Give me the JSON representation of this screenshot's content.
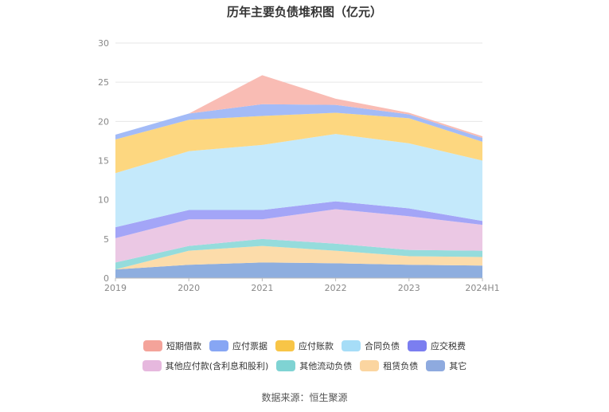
{
  "title": "历年主要负债堆积图（亿元）",
  "source": "数据来源：恒生聚源",
  "chart_data": {
    "type": "area",
    "stacked": true,
    "x": [
      "2019",
      "2020",
      "2021",
      "2022",
      "2023",
      "2024H1"
    ],
    "ylim": [
      0,
      30
    ],
    "yticks": [
      0,
      5,
      10,
      15,
      20,
      25,
      30
    ],
    "grid": true,
    "legend_position": "bottom",
    "series": [
      {
        "name": "其它",
        "color": "#8eaedf",
        "values": [
          1.1,
          1.7,
          2.0,
          1.9,
          1.7,
          1.6
        ]
      },
      {
        "name": "租赁负债",
        "color": "#fcdcaa",
        "values": [
          0,
          1.8,
          2.1,
          1.6,
          1.1,
          1.1
        ]
      },
      {
        "name": "其他流动负债",
        "color": "#95dcdc",
        "values": [
          0.9,
          0.6,
          0.9,
          0.9,
          0.8,
          0.8
        ]
      },
      {
        "name": "其他应付款(含利息和股利)",
        "color": "#ebc8e4",
        "values": [
          3.1,
          3.4,
          2.5,
          4.4,
          4.3,
          3.3
        ]
      },
      {
        "name": "应交税费",
        "color": "#a3a5f7",
        "values": [
          1.4,
          1.2,
          1.2,
          1.0,
          1.0,
          0.5
        ]
      },
      {
        "name": "合同负债",
        "color": "#c4e9fb",
        "values": [
          6.9,
          7.5,
          8.3,
          8.6,
          8.3,
          7.7
        ]
      },
      {
        "name": "应付账款",
        "color": "#fdd780",
        "values": [
          4.3,
          4.0,
          3.7,
          2.7,
          3.2,
          2.4
        ]
      },
      {
        "name": "应付票据",
        "color": "#a3bbf7",
        "values": [
          0.6,
          0.8,
          1.5,
          1.0,
          0.5,
          0.5
        ]
      },
      {
        "name": "短期借款",
        "color": "#f9bcb4",
        "values": [
          0,
          0,
          3.7,
          0.8,
          0.2,
          0.2
        ]
      }
    ]
  },
  "legend": {
    "rows": [
      [
        {
          "label": "短期借款",
          "color": "#f4a39a"
        },
        {
          "label": "应付票据",
          "color": "#87a6f4"
        },
        {
          "label": "应付账款",
          "color": "#f8c547"
        },
        {
          "label": "合同负债",
          "color": "#a6ddf7"
        },
        {
          "label": "应交税费",
          "color": "#7b7ef0"
        }
      ],
      [
        {
          "label": "其他应付款(含利息和股利)",
          "color": "#e6b8de"
        },
        {
          "label": "其他流动负债",
          "color": "#7fd3d3"
        },
        {
          "label": "租赁负债",
          "color": "#fbd5a0"
        },
        {
          "label": "其它",
          "color": "#8eaadf"
        }
      ]
    ]
  }
}
